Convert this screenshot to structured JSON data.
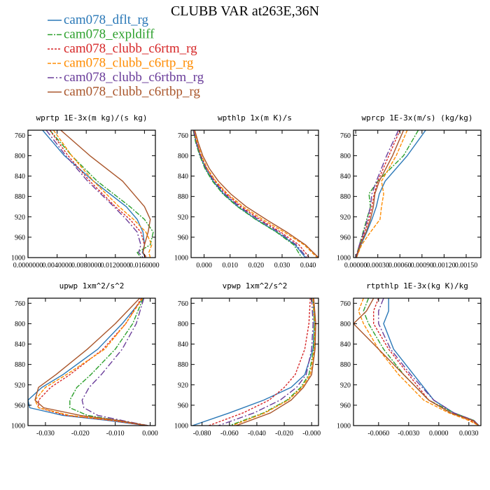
{
  "title": "CLUBB VAR at263E,36N",
  "legend": [
    {
      "name": "cam078_dflt_rg",
      "color": "#2a78b7",
      "dash": ""
    },
    {
      "name": "cam078_expldiff",
      "color": "#2ca02c",
      "dash": "7 2 2 2"
    },
    {
      "name": "cam078_clubb_c6rtm_rg",
      "color": "#d62728",
      "dash": "3 2"
    },
    {
      "name": "cam078_clubb_c6rtp_rg",
      "color": "#ff8c00",
      "dash": "5 2"
    },
    {
      "name": "cam078_clubb_c6rtbm_rg",
      "color": "#6a3d9a",
      "dash": "9 3 2 3"
    },
    {
      "name": "cam078_clubb_c6rtbp_rg",
      "color": "#a9552a",
      "dash": ""
    }
  ],
  "chart_data": [
    {
      "type": "line",
      "title": "wprtp  1E-3x(m kg)/(s kg)",
      "xlim": [
        0,
        0.0175
      ],
      "ylim": [
        1000,
        750
      ],
      "y_ticks": [
        760,
        800,
        840,
        880,
        920,
        960,
        1000
      ],
      "x_ticks": [
        {
          "v": 0,
          "label": "0.0000000"
        },
        {
          "v": 0.004,
          "label": "0.0040000"
        },
        {
          "v": 0.008,
          "label": "0.0080000"
        },
        {
          "v": 0.012,
          "label": "0.0120000"
        },
        {
          "v": 0.016,
          "label": "0.0160000"
        }
      ],
      "y": [
        750,
        800,
        850,
        900,
        925,
        950,
        975,
        990,
        1000
      ],
      "series": [
        {
          "name": "cam078_dflt_rg",
          "x": [
            0.002,
            0.005,
            0.009,
            0.0135,
            0.015,
            0.0158,
            0.016,
            0.0157,
            0.0162
          ]
        },
        {
          "name": "cam078_expldiff",
          "x": [
            0.003,
            0.006,
            0.0095,
            0.014,
            0.016,
            0.0172,
            0.0168,
            0.015,
            0.0155
          ]
        },
        {
          "name": "cam078_clubb_c6rtm_rg",
          "x": [
            0.003,
            0.0055,
            0.0085,
            0.012,
            0.014,
            0.0155,
            0.016,
            0.0158,
            0.0163
          ]
        },
        {
          "name": "cam078_clubb_c6rtp_rg",
          "x": [
            0.0035,
            0.006,
            0.009,
            0.0125,
            0.0145,
            0.0162,
            0.017,
            0.0166,
            0.0168
          ]
        },
        {
          "name": "cam078_clubb_c6rtbm_rg",
          "x": [
            0.0025,
            0.0052,
            0.0082,
            0.0118,
            0.0135,
            0.015,
            0.0155,
            0.0152,
            0.0158
          ]
        },
        {
          "name": "cam078_clubb_c6rtbp_rg",
          "x": [
            0.0045,
            0.0085,
            0.013,
            0.016,
            0.0168,
            0.0165,
            0.016,
            0.0158,
            0.0162
          ]
        }
      ]
    },
    {
      "type": "line",
      "title": "wpthlp  1x(m K)/s",
      "xlim": [
        -0.005,
        0.044
      ],
      "ylim": [
        1000,
        750
      ],
      "y_ticks": [
        760,
        800,
        840,
        880,
        920,
        960,
        1000
      ],
      "x_ticks": [
        {
          "v": 0,
          "label": "0.000"
        },
        {
          "v": 0.01,
          "label": "0.010"
        },
        {
          "v": 0.02,
          "label": "0.020"
        },
        {
          "v": 0.03,
          "label": "0.030"
        },
        {
          "v": 0.04,
          "label": "0.040"
        }
      ],
      "y": [
        750,
        775,
        800,
        825,
        850,
        875,
        900,
        925,
        950,
        975,
        1000
      ],
      "series": [
        {
          "name": "cam078_dflt_rg",
          "x": [
            -0.004,
            -0.003,
            -0.0015,
            0.0005,
            0.0035,
            0.0075,
            0.013,
            0.02,
            0.028,
            0.035,
            0.039
          ]
        },
        {
          "name": "cam078_expldiff",
          "x": [
            -0.0042,
            -0.0032,
            -0.0017,
            0.0003,
            0.0032,
            0.0072,
            0.0128,
            0.0198,
            0.0278,
            0.0345,
            0.0375
          ]
        },
        {
          "name": "cam078_clubb_c6rtm_rg",
          "x": [
            -0.004,
            -0.0028,
            -0.0012,
            0.001,
            0.0042,
            0.0085,
            0.0142,
            0.0215,
            0.0295,
            0.0365,
            0.0405
          ]
        },
        {
          "name": "cam078_clubb_c6rtp_rg",
          "x": [
            -0.0038,
            -0.0026,
            -0.001,
            0.0012,
            0.0045,
            0.009,
            0.015,
            0.0225,
            0.0308,
            0.0385,
            0.0435
          ]
        },
        {
          "name": "cam078_clubb_c6rtbm_rg",
          "x": [
            -0.0041,
            -0.0029,
            -0.0014,
            0.0008,
            0.0038,
            0.008,
            0.0136,
            0.0208,
            0.0288,
            0.0355,
            0.0395
          ]
        },
        {
          "name": "cam078_clubb_c6rtbp_rg",
          "x": [
            -0.0036,
            -0.0022,
            -0.0005,
            0.002,
            0.0055,
            0.0102,
            0.0162,
            0.0238,
            0.0318,
            0.039,
            0.044
          ]
        }
      ]
    },
    {
      "type": "line",
      "title": "wprcp  1E-3x(m/s) (kg/kg)",
      "xlim": [
        -3e-05,
        0.0017
      ],
      "ylim": [
        1000,
        750
      ],
      "y_ticks": [
        760,
        800,
        840,
        880,
        920,
        960,
        1000
      ],
      "x_ticks": [
        {
          "v": 0,
          "label": "0.00000"
        },
        {
          "v": 0.0003,
          "label": "0.00030"
        },
        {
          "v": 0.0006,
          "label": "0.00060"
        },
        {
          "v": 0.0009,
          "label": "0.00090"
        },
        {
          "v": 0.0012,
          "label": "0.00120"
        },
        {
          "v": 0.0015,
          "label": "0.00150"
        }
      ],
      "y": [
        750,
        800,
        850,
        875,
        900,
        925,
        950,
        975,
        1000
      ],
      "series": [
        {
          "name": "cam078_dflt_rg",
          "x": [
            0.00095,
            0.0007,
            0.0004,
            0.00032,
            0.00028,
            0.00022,
            0.00015,
            7e-05,
            1e-05
          ]
        },
        {
          "name": "cam078_expldiff",
          "x": [
            0.00085,
            0.00065,
            0.0003,
            0.00018,
            0.0002,
            0.00015,
            0.0001,
            5e-05,
            0.0
          ]
        },
        {
          "name": "cam078_clubb_c6rtm_rg",
          "x": [
            0.0006,
            0.00045,
            0.0003,
            0.00025,
            0.00022,
            0.00018,
            0.00012,
            6e-05,
            0.0
          ]
        },
        {
          "name": "cam078_clubb_c6rtp_rg",
          "x": [
            0.0007,
            0.00055,
            0.00035,
            0.00038,
            0.00035,
            0.00033,
            0.0002,
            8e-05,
            1e-05
          ]
        },
        {
          "name": "cam078_clubb_c6rtbm_rg",
          "x": [
            0.00058,
            0.00042,
            0.00028,
            0.00022,
            0.0002,
            0.00016,
            0.00011,
            5e-05,
            0.0
          ]
        },
        {
          "name": "cam078_clubb_c6rtbp_rg",
          "x": [
            0.00065,
            0.0005,
            0.00032,
            0.00026,
            0.00024,
            0.0002,
            0.00014,
            6e-05,
            1e-05
          ]
        }
      ]
    },
    {
      "type": "line",
      "title": "upwp  1xm^2/s^2",
      "xlim": [
        -0.035,
        0.0015
      ],
      "ylim": [
        1000,
        750
      ],
      "y_ticks": [
        760,
        800,
        840,
        880,
        920,
        960,
        1000
      ],
      "x_ticks": [
        {
          "v": -0.03,
          "label": "-0.030"
        },
        {
          "v": -0.02,
          "label": "-0.020"
        },
        {
          "v": -0.01,
          "label": "-0.010"
        },
        {
          "v": 0,
          "label": "0.000"
        }
      ],
      "y": [
        750,
        800,
        850,
        900,
        925,
        950,
        965,
        980,
        990,
        1000
      ],
      "series": [
        {
          "name": "cam078_dflt_rg",
          "x": [
            -0.002,
            -0.008,
            -0.015,
            -0.025,
            -0.031,
            -0.035,
            -0.0345,
            -0.025,
            -0.012,
            -0.001
          ]
        },
        {
          "name": "cam078_expldiff",
          "x": [
            -0.002,
            -0.005,
            -0.01,
            -0.017,
            -0.021,
            -0.023,
            -0.023,
            -0.018,
            -0.009,
            -0.0005
          ]
        },
        {
          "name": "cam078_clubb_c6rtm_rg",
          "x": [
            -0.0025,
            -0.007,
            -0.0135,
            -0.023,
            -0.0285,
            -0.032,
            -0.032,
            -0.024,
            -0.011,
            -0.001
          ]
        },
        {
          "name": "cam078_clubb_c6rtp_rg",
          "x": [
            -0.0022,
            -0.007,
            -0.013,
            -0.024,
            -0.03,
            -0.033,
            -0.032,
            -0.023,
            -0.01,
            -0.0005
          ]
        },
        {
          "name": "cam078_clubb_c6rtbm_rg",
          "x": [
            -0.0018,
            -0.004,
            -0.008,
            -0.014,
            -0.0175,
            -0.0195,
            -0.019,
            -0.015,
            -0.008,
            -0.0005
          ]
        },
        {
          "name": "cam078_clubb_c6rtbp_rg",
          "x": [
            -0.003,
            -0.01,
            -0.018,
            -0.027,
            -0.032,
            -0.033,
            -0.0305,
            -0.02,
            -0.009,
            -0.0008
          ]
        }
      ]
    },
    {
      "type": "line",
      "title": "vpwp  1xm^2/s^2",
      "xlim": [
        -0.088,
        0.005
      ],
      "ylim": [
        1000,
        750
      ],
      "y_ticks": [
        760,
        800,
        840,
        880,
        920,
        960,
        1000
      ],
      "x_ticks": [
        {
          "v": -0.08,
          "label": "-0.080"
        },
        {
          "v": -0.06,
          "label": "-0.060"
        },
        {
          "v": -0.04,
          "label": "-0.040"
        },
        {
          "v": -0.02,
          "label": "-0.020"
        },
        {
          "v": 0,
          "label": "-0.000"
        }
      ],
      "y": [
        750,
        800,
        850,
        900,
        925,
        950,
        975,
        1000
      ],
      "series": [
        {
          "name": "cam078_dflt_rg",
          "x": [
            0.001,
            0.002,
            0.001,
            -0.005,
            -0.015,
            -0.035,
            -0.06,
            -0.087
          ]
        },
        {
          "name": "cam078_expldiff",
          "x": [
            0.001,
            0.002,
            0.0015,
            -0.002,
            -0.008,
            -0.018,
            -0.035,
            -0.06
          ]
        },
        {
          "name": "cam078_clubb_c6rtm_rg",
          "x": [
            -0.001,
            -0.002,
            -0.005,
            -0.012,
            -0.02,
            -0.031,
            -0.05,
            -0.075
          ]
        },
        {
          "name": "cam078_clubb_c6rtp_rg",
          "x": [
            0.001,
            0.0025,
            0.002,
            -0.001,
            -0.007,
            -0.017,
            -0.034,
            -0.058
          ]
        },
        {
          "name": "cam078_clubb_c6rtbm_rg",
          "x": [
            0.0,
            0.001,
            0.0,
            -0.004,
            -0.011,
            -0.023,
            -0.042,
            -0.068
          ]
        },
        {
          "name": "cam078_clubb_c6rtbp_rg",
          "x": [
            0.0015,
            0.003,
            0.0025,
            0.0,
            -0.006,
            -0.015,
            -0.03,
            -0.055
          ]
        }
      ]
    },
    {
      "type": "line",
      "title": "rtpthlp  1E-3x(kg K)/kg",
      "xlim": [
        -0.0085,
        0.0042
      ],
      "ylim": [
        1000,
        750
      ],
      "y_ticks": [
        760,
        800,
        840,
        880,
        920,
        960,
        1000
      ],
      "x_ticks": [
        {
          "v": -0.006,
          "label": "-0.0060"
        },
        {
          "v": -0.003,
          "label": "-0.0030"
        },
        {
          "v": 0,
          "label": "0.0000"
        },
        {
          "v": 0.003,
          "label": "0.0030"
        }
      ],
      "y": [
        750,
        775,
        800,
        850,
        900,
        950,
        975,
        990,
        1000
      ],
      "series": [
        {
          "name": "cam078_dflt_rg",
          "x": [
            -0.005,
            -0.005,
            -0.0055,
            -0.0045,
            -0.0025,
            -0.0005,
            0.0015,
            0.0035,
            0.004
          ]
        },
        {
          "name": "cam078_expldiff",
          "x": [
            -0.007,
            -0.0075,
            -0.007,
            -0.0055,
            -0.0035,
            -0.001,
            0.0015,
            0.0035,
            0.004
          ]
        },
        {
          "name": "cam078_clubb_c6rtm_rg",
          "x": [
            -0.006,
            -0.0065,
            -0.0065,
            -0.005,
            -0.003,
            -0.001,
            0.0012,
            0.0032,
            0.004
          ]
        },
        {
          "name": "cam078_clubb_c6rtp_rg",
          "x": [
            -0.0075,
            -0.008,
            -0.0075,
            -0.006,
            -0.004,
            -0.0015,
            0.001,
            0.003,
            0.004
          ]
        },
        {
          "name": "cam078_clubb_c6rtbm_rg",
          "x": [
            -0.0055,
            -0.006,
            -0.006,
            -0.0048,
            -0.0028,
            -0.0005,
            0.0015,
            0.0035,
            0.004
          ]
        },
        {
          "name": "cam078_clubb_c6rtbp_rg",
          "x": [
            -0.0065,
            -0.0072,
            -0.0085,
            -0.006,
            -0.0035,
            -0.001,
            0.0012,
            0.0034,
            0.004
          ]
        }
      ]
    }
  ]
}
